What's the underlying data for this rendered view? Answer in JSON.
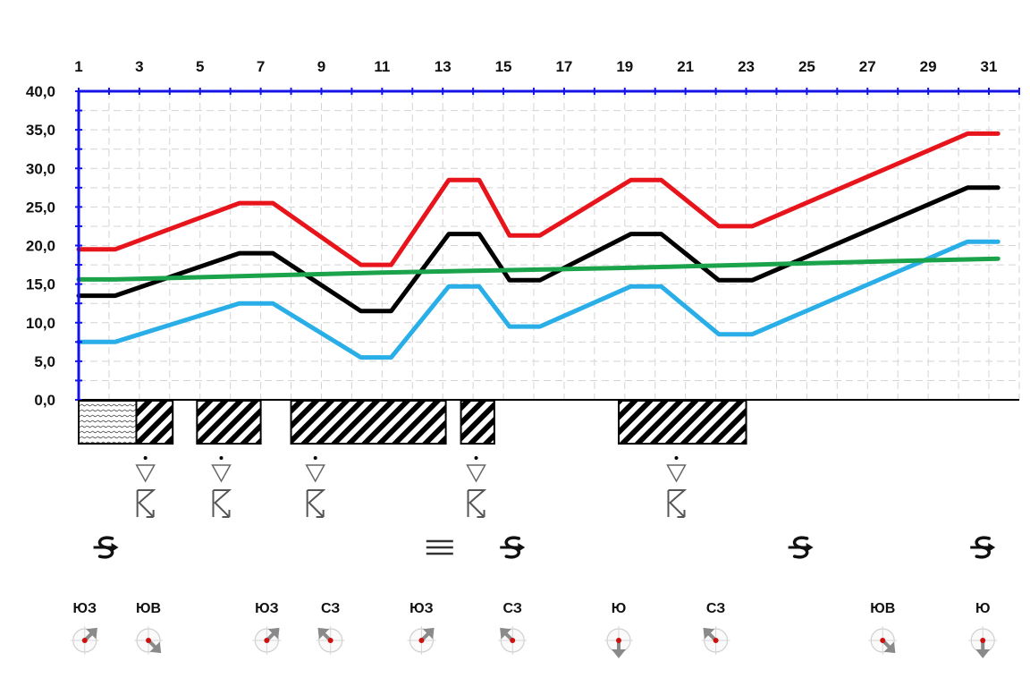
{
  "chart_data": {
    "type": "line",
    "title": "",
    "xlabel": "",
    "ylabel": "",
    "x": [
      1,
      2,
      3,
      4,
      5,
      6,
      7,
      8,
      9,
      10,
      11,
      12,
      13,
      14,
      15,
      16,
      17,
      18,
      19,
      20,
      21,
      22,
      23,
      24,
      25,
      26,
      27,
      28,
      29,
      30,
      31
    ],
    "x_tick_labels": [
      "1",
      "3",
      "5",
      "7",
      "9",
      "11",
      "13",
      "15",
      "17",
      "19",
      "21",
      "23",
      "25",
      "27",
      "29",
      "31"
    ],
    "y_tick_labels": [
      "0,0",
      "5,0",
      "10,0",
      "15,0",
      "20,0",
      "25,0",
      "30,0",
      "35,0",
      "40,0"
    ],
    "xlim": [
      1,
      31
    ],
    "ylim": [
      0,
      40
    ],
    "grid": true,
    "series": [
      {
        "color": "#e8141c",
        "points": [
          [
            1,
            19.5
          ],
          [
            2.2,
            19.5
          ],
          [
            6.3,
            25.5
          ],
          [
            7.4,
            25.5
          ],
          [
            10.3,
            17.5
          ],
          [
            11.3,
            17.5
          ],
          [
            13.2,
            28.5
          ],
          [
            14.2,
            28.5
          ],
          [
            15.2,
            21.3
          ],
          [
            16.2,
            21.3
          ],
          [
            19.2,
            28.5
          ],
          [
            20.2,
            28.5
          ],
          [
            22.1,
            22.5
          ],
          [
            23.2,
            22.5
          ],
          [
            30.3,
            34.5
          ],
          [
            31.3,
            34.5
          ]
        ]
      },
      {
        "color": "#000000",
        "points": [
          [
            1,
            13.5
          ],
          [
            2.2,
            13.5
          ],
          [
            6.3,
            19.0
          ],
          [
            7.4,
            19.0
          ],
          [
            10.3,
            11.5
          ],
          [
            11.3,
            11.5
          ],
          [
            13.2,
            21.5
          ],
          [
            14.2,
            21.5
          ],
          [
            15.2,
            15.5
          ],
          [
            16.2,
            15.5
          ],
          [
            19.2,
            21.5
          ],
          [
            20.2,
            21.5
          ],
          [
            22.1,
            15.5
          ],
          [
            23.2,
            15.5
          ],
          [
            30.3,
            27.5
          ],
          [
            31.3,
            27.5
          ]
        ]
      },
      {
        "color": "#29aee8",
        "points": [
          [
            1,
            7.5
          ],
          [
            2.2,
            7.5
          ],
          [
            6.3,
            12.5
          ],
          [
            7.4,
            12.5
          ],
          [
            10.3,
            5.5
          ],
          [
            11.3,
            5.5
          ],
          [
            13.2,
            14.7
          ],
          [
            14.2,
            14.7
          ],
          [
            15.2,
            9.5
          ],
          [
            16.2,
            9.5
          ],
          [
            19.2,
            14.7
          ],
          [
            20.2,
            14.7
          ],
          [
            22.1,
            8.5
          ],
          [
            23.2,
            8.5
          ],
          [
            30.3,
            20.5
          ],
          [
            31.3,
            20.5
          ]
        ]
      },
      {
        "color": "#1aa34a",
        "points": [
          [
            1,
            15.6
          ],
          [
            2.2,
            15.6
          ],
          [
            7,
            16.1
          ],
          [
            11,
            16.5
          ],
          [
            15,
            16.8
          ],
          [
            19,
            17.1
          ],
          [
            23,
            17.5
          ],
          [
            27,
            17.9
          ],
          [
            31.3,
            18.3
          ]
        ]
      }
    ]
  },
  "precipitation_bars": [
    {
      "start": 1.0,
      "end": 2.9,
      "pattern": "dotted"
    },
    {
      "start": 2.9,
      "end": 4.1,
      "pattern": "hatched"
    },
    {
      "start": 4.9,
      "end": 7.0,
      "pattern": "hatched"
    },
    {
      "start": 8.0,
      "end": 13.1,
      "pattern": "hatched"
    },
    {
      "start": 13.6,
      "end": 14.7,
      "pattern": "hatched"
    },
    {
      "start": 18.8,
      "end": 23.0,
      "pattern": "hatched"
    }
  ],
  "thunderstorm_days": [
    3.2,
    5.7,
    8.8,
    14.1,
    20.7
  ],
  "phenomenon_marks": [
    {
      "day": 1.9,
      "icon": "blizzard-icon"
    },
    {
      "day": 12.9,
      "icon": "fog-icon"
    },
    {
      "day": 15.3,
      "icon": "blizzard-icon"
    },
    {
      "day": 24.8,
      "icon": "blizzard-icon"
    },
    {
      "day": 30.8,
      "icon": "blizzard-icon"
    }
  ],
  "wind_directions": [
    {
      "day": 1.2,
      "label": "ЮЗ",
      "icon": "wind-compass-icon",
      "angle": 225
    },
    {
      "day": 3.3,
      "label": "ЮВ",
      "icon": "wind-compass-icon",
      "angle": 315
    },
    {
      "day": 7.2,
      "label": "ЮЗ",
      "icon": "wind-compass-icon",
      "angle": 225
    },
    {
      "day": 9.3,
      "label": "СЗ",
      "icon": "wind-compass-icon",
      "angle": 135
    },
    {
      "day": 12.3,
      "label": "ЮЗ",
      "icon": "wind-compass-icon",
      "angle": 225
    },
    {
      "day": 15.3,
      "label": "СЗ",
      "icon": "wind-compass-icon",
      "angle": 135
    },
    {
      "day": 18.8,
      "label": "Ю",
      "icon": "wind-compass-icon",
      "angle": 0
    },
    {
      "day": 22.0,
      "label": "СЗ",
      "icon": "wind-compass-icon",
      "angle": 135
    },
    {
      "day": 27.5,
      "label": "ЮВ",
      "icon": "wind-compass-icon",
      "angle": 315
    },
    {
      "day": 30.8,
      "label": "Ю",
      "icon": "wind-compass-icon",
      "angle": 0
    }
  ],
  "colors": {
    "axis": "#1414e6",
    "grid": "#d4d4d4",
    "compass_arrow": "#8a8a8a",
    "compass_dot": "#cc1111"
  }
}
